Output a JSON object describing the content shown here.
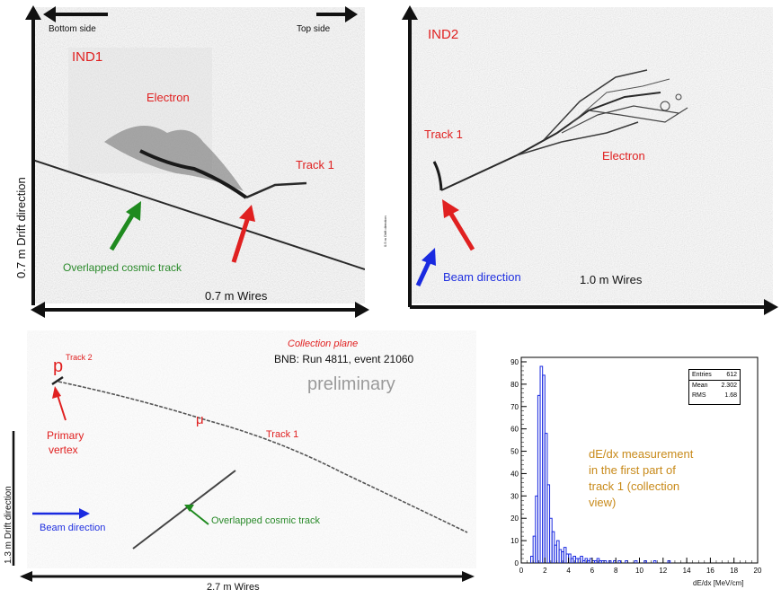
{
  "ind1": {
    "plane": "IND1",
    "top_left": "Bottom side",
    "top_right": "Top side",
    "electron": "Electron",
    "track1": "Track 1",
    "cosmic": "Overlapped cosmic track",
    "xlabel": "0.7 m  Wires",
    "ylabel": "0.7 m Drift direction"
  },
  "ind2": {
    "plane": "IND2",
    "track1": "Track 1",
    "electron": "Electron",
    "beam": "Beam direction",
    "xlabel": "1.0 m  Wires",
    "ylabel_small": "0.5 m Drift direction"
  },
  "collection": {
    "plane": "Collection plane",
    "run": "BNB: Run 4811, event 21060",
    "prelim": "preliminary",
    "p": "p",
    "track2": "Track 2",
    "vertex_line1": "Primary",
    "vertex_line2": "vertex",
    "mu": "μ",
    "track1": "Track 1",
    "beam": "Beam direction",
    "cosmic": "Overlapped cosmic track",
    "xlabel": "2.7 m   Wires",
    "ylabel": "1.3 m Drift direction"
  },
  "hist": {
    "stats": [
      {
        "k": "Entries",
        "v": "612"
      },
      {
        "k": "Mean",
        "v": "2.302"
      },
      {
        "k": "RMS",
        "v": "1.68"
      }
    ],
    "caption": [
      "dE/dx measurement",
      "in the first part of",
      "track 1 (collection",
      "view)"
    ],
    "xlabel": "dE/dx [MeV/cm]",
    "yticks": [
      "0",
      "10",
      "20",
      "30",
      "40",
      "50",
      "60",
      "70",
      "80",
      "90"
    ],
    "xticks": [
      "0",
      "2",
      "4",
      "6",
      "8",
      "10",
      "12",
      "14",
      "16",
      "18",
      "20"
    ]
  },
  "chart_data": {
    "type": "bar",
    "title": "",
    "xlabel": "dE/dx [MeV/cm]",
    "ylabel": "",
    "xlim": [
      0,
      20
    ],
    "ylim": [
      0,
      92
    ],
    "bin_width": 0.2,
    "bin_starts": [
      0.8,
      1.0,
      1.2,
      1.4,
      1.6,
      1.8,
      2.0,
      2.2,
      2.4,
      2.6,
      2.8,
      3.0,
      3.2,
      3.4,
      3.6,
      3.8,
      4.0,
      4.2,
      4.4,
      4.6,
      4.8,
      5.0,
      5.2,
      5.4,
      5.6,
      5.8,
      6.0,
      6.2,
      6.4,
      6.6,
      6.8,
      7.0,
      7.4,
      7.8,
      8.2,
      8.8,
      9.6,
      10.4,
      11.2,
      12.4
    ],
    "values": [
      3,
      12,
      30,
      75,
      88,
      84,
      58,
      35,
      20,
      14,
      8,
      10,
      6,
      5,
      7,
      4,
      4,
      2,
      3,
      2,
      2,
      3,
      1,
      2,
      1,
      2,
      1,
      1,
      2,
      1,
      1,
      1,
      1,
      1,
      1,
      1,
      1,
      1,
      1,
      1
    ]
  }
}
